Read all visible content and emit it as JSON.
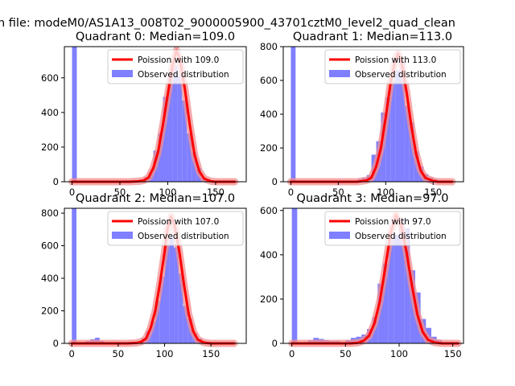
{
  "figure": {
    "title": "n file: modeM0/AS1A13_008T02_9000005900_43701cztM0_level2_quad_clean"
  },
  "colors": {
    "bar": "#7f7fff",
    "poisson_glow": "#f28f8f",
    "poisson_line": "#ff0000",
    "axis": "#000000",
    "legend_border": "#cccccc"
  },
  "chart_data": [
    {
      "type": "bar",
      "title": "Quadrant 0: Median=109.0",
      "xlim": [
        -8,
        182
      ],
      "ylim": [
        0,
        780
      ],
      "xticks": [
        0,
        50,
        100,
        150
      ],
      "yticks": [
        0,
        200,
        400,
        600
      ],
      "legend": {
        "placement": "top-right",
        "line_label": "Poission with 109.0",
        "bar_label": "Observed distribution"
      },
      "poisson_mean": 109,
      "hist": {
        "bin_starts": [
          0,
          50,
          55,
          60,
          65,
          70,
          75,
          80,
          85,
          90,
          95,
          100,
          105,
          110,
          115,
          120,
          125,
          130,
          135,
          140,
          145
        ],
        "bin_width": 5,
        "counts": [
          780,
          4,
          8,
          8,
          8,
          12,
          25,
          55,
          180,
          280,
          490,
          620,
          670,
          610,
          470,
          280,
          170,
          80,
          25,
          15,
          5
        ]
      },
      "poisson_curve": {
        "x": [
          0,
          60,
          70,
          75,
          80,
          85,
          90,
          95,
          100,
          105,
          109,
          113,
          118,
          123,
          128,
          133,
          138,
          145,
          150,
          170
        ],
        "y": [
          0,
          0,
          3,
          8,
          25,
          80,
          175,
          330,
          505,
          670,
          760,
          700,
          530,
          330,
          155,
          60,
          18,
          3,
          0,
          0
        ]
      }
    },
    {
      "type": "bar",
      "title": "Quadrant 1: Median=113.0",
      "xlim": [
        -8,
        182
      ],
      "ylim": [
        0,
        800
      ],
      "xticks": [
        0,
        50,
        100,
        150
      ],
      "yticks": [
        0,
        200,
        400,
        600,
        800
      ],
      "legend": {
        "placement": "top-right",
        "line_label": "Poission with 113.0",
        "bar_label": "Observed distribution"
      },
      "poisson_mean": 113,
      "hist": {
        "bin_starts": [
          0,
          70,
          75,
          80,
          85,
          90,
          95,
          100,
          105,
          110,
          115,
          120,
          125,
          130,
          135,
          140,
          145,
          150,
          155
        ],
        "bin_width": 5,
        "counts": [
          800,
          15,
          25,
          40,
          160,
          240,
          410,
          500,
          600,
          660,
          700,
          450,
          350,
          180,
          90,
          45,
          25,
          15,
          5
        ]
      },
      "poisson_curve": {
        "x": [
          0,
          70,
          80,
          85,
          90,
          95,
          100,
          105,
          110,
          113,
          117,
          122,
          127,
          132,
          137,
          142,
          150,
          155,
          160,
          170
        ],
        "y": [
          0,
          0,
          8,
          25,
          90,
          200,
          380,
          580,
          720,
          760,
          700,
          530,
          330,
          165,
          65,
          22,
          5,
          0,
          0,
          0
        ]
      }
    },
    {
      "type": "bar",
      "title": "Quadrant 2: Median=107.0",
      "xlim": [
        -8,
        188
      ],
      "ylim": [
        0,
        830
      ],
      "xticks": [
        0,
        50,
        100,
        150
      ],
      "yticks": [
        0,
        200,
        400,
        600,
        800
      ],
      "legend": {
        "placement": "top-right",
        "line_label": "Poission with 107.0",
        "bar_label": "Observed distribution"
      },
      "poisson_mean": 107,
      "hist": {
        "bin_starts": [
          0,
          15,
          20,
          25,
          30,
          35,
          40,
          45,
          50,
          55,
          60,
          65,
          70,
          75,
          80,
          85,
          90,
          95,
          100,
          105,
          110,
          115,
          120,
          125,
          130,
          135,
          140,
          145,
          150,
          155
        ],
        "bin_width": 5,
        "counts": [
          830,
          15,
          25,
          35,
          15,
          5,
          5,
          5,
          5,
          5,
          5,
          5,
          10,
          30,
          75,
          135,
          260,
          410,
          600,
          650,
          590,
          430,
          230,
          150,
          60,
          30,
          15,
          10,
          5,
          5
        ]
      },
      "poisson_curve": {
        "x": [
          0,
          60,
          70,
          75,
          80,
          85,
          90,
          95,
          100,
          103,
          107,
          111,
          116,
          121,
          126,
          131,
          136,
          143,
          150,
          175
        ],
        "y": [
          0,
          0,
          3,
          10,
          30,
          95,
          200,
          370,
          560,
          700,
          780,
          720,
          560,
          360,
          180,
          72,
          22,
          4,
          0,
          0
        ]
      }
    },
    {
      "type": "bar",
      "title": "Quadrant 3: Median=97.0",
      "xlim": [
        -8,
        160
      ],
      "ylim": [
        0,
        610
      ],
      "xticks": [
        0,
        50,
        100,
        150
      ],
      "yticks": [
        0,
        200,
        400,
        600
      ],
      "legend": {
        "placement": "top-right",
        "line_label": "Poission with 97.0",
        "bar_label": "Observed distribution"
      },
      "poisson_mean": 97,
      "hist": {
        "bin_starts": [
          0,
          15,
          20,
          25,
          30,
          35,
          40,
          45,
          50,
          55,
          60,
          65,
          70,
          75,
          80,
          85,
          90,
          95,
          100,
          105,
          110,
          115,
          120,
          125,
          130,
          135,
          140
        ],
        "bin_width": 5,
        "counts": [
          610,
          15,
          25,
          20,
          15,
          10,
          10,
          5,
          15,
          25,
          30,
          40,
          65,
          120,
          270,
          360,
          500,
          490,
          560,
          520,
          330,
          230,
          110,
          70,
          30,
          15,
          5
        ]
      },
      "poisson_curve": {
        "x": [
          0,
          55,
          62,
          67,
          72,
          77,
          82,
          87,
          92,
          97,
          102,
          107,
          112,
          117,
          122,
          127,
          133,
          140,
          150,
          155
        ],
        "y": [
          0,
          0,
          3,
          12,
          35,
          90,
          190,
          340,
          495,
          580,
          530,
          410,
          260,
          130,
          52,
          16,
          4,
          0,
          0,
          0
        ]
      }
    }
  ]
}
